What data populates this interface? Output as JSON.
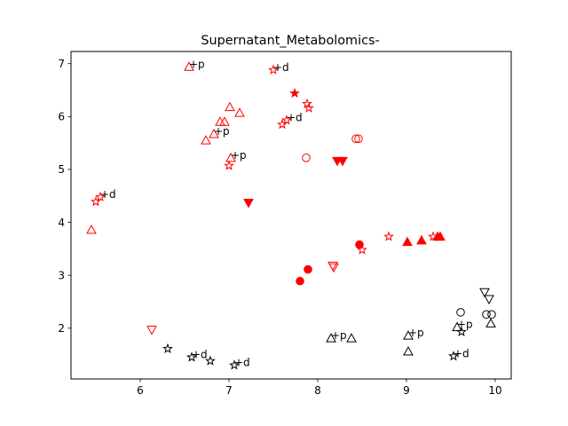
{
  "chart_data": {
    "type": "scatter",
    "title": "Supernatant_Metabolomics-",
    "xlabel": "",
    "ylabel": "",
    "xlim": [
      5.22,
      10.18
    ],
    "ylim": [
      1.04,
      7.23
    ],
    "xticks": [
      6,
      7,
      8,
      9,
      10
    ],
    "yticks": [
      2,
      3,
      4,
      5,
      6,
      7
    ],
    "grid": false,
    "colors": {
      "red": "#ff0000",
      "black": "#000000"
    },
    "points": [
      {
        "x": 6.55,
        "y": 6.94,
        "marker": "triangle-up",
        "color": "red",
        "fill": false
      },
      {
        "x": 7.01,
        "y": 6.18,
        "marker": "triangle-up",
        "color": "red",
        "fill": false
      },
      {
        "x": 7.12,
        "y": 6.07,
        "marker": "triangle-up",
        "color": "red",
        "fill": false
      },
      {
        "x": 6.9,
        "y": 5.9,
        "marker": "triangle-up",
        "color": "red",
        "fill": false
      },
      {
        "x": 6.95,
        "y": 5.9,
        "marker": "triangle-up",
        "color": "red",
        "fill": false
      },
      {
        "x": 6.83,
        "y": 5.67,
        "marker": "triangle-up",
        "color": "red",
        "fill": false
      },
      {
        "x": 6.74,
        "y": 5.55,
        "marker": "triangle-up",
        "color": "red",
        "fill": false
      },
      {
        "x": 7.02,
        "y": 5.22,
        "marker": "triangle-up",
        "color": "red",
        "fill": false
      },
      {
        "x": 5.45,
        "y": 3.86,
        "marker": "triangle-up",
        "color": "red",
        "fill": false
      },
      {
        "x": 7.5,
        "y": 6.88,
        "marker": "star",
        "color": "red",
        "fill": false
      },
      {
        "x": 7.88,
        "y": 6.24,
        "marker": "star",
        "color": "red",
        "fill": false
      },
      {
        "x": 7.9,
        "y": 6.16,
        "marker": "star",
        "color": "red",
        "fill": false
      },
      {
        "x": 7.65,
        "y": 5.93,
        "marker": "star",
        "color": "red",
        "fill": false
      },
      {
        "x": 7.6,
        "y": 5.85,
        "marker": "star",
        "color": "red",
        "fill": false
      },
      {
        "x": 7.0,
        "y": 5.07,
        "marker": "star",
        "color": "red",
        "fill": false
      },
      {
        "x": 5.55,
        "y": 4.48,
        "marker": "star",
        "color": "red",
        "fill": false
      },
      {
        "x": 5.5,
        "y": 4.39,
        "marker": "star",
        "color": "red",
        "fill": false
      },
      {
        "x": 8.8,
        "y": 3.73,
        "marker": "star",
        "color": "red",
        "fill": false
      },
      {
        "x": 8.5,
        "y": 3.48,
        "marker": "star",
        "color": "red",
        "fill": false
      },
      {
        "x": 9.3,
        "y": 3.73,
        "marker": "star",
        "color": "red",
        "fill": false
      },
      {
        "x": 7.74,
        "y": 6.44,
        "marker": "star",
        "color": "red",
        "fill": true
      },
      {
        "x": 8.43,
        "y": 5.58,
        "marker": "circle",
        "color": "red",
        "fill": false
      },
      {
        "x": 8.46,
        "y": 5.58,
        "marker": "circle",
        "color": "red",
        "fill": false
      },
      {
        "x": 7.87,
        "y": 5.22,
        "marker": "circle",
        "color": "red",
        "fill": false
      },
      {
        "x": 8.22,
        "y": 5.16,
        "marker": "triangle-down",
        "color": "red",
        "fill": true
      },
      {
        "x": 8.28,
        "y": 5.16,
        "marker": "triangle-down",
        "color": "red",
        "fill": true
      },
      {
        "x": 7.22,
        "y": 4.37,
        "marker": "triangle-down",
        "color": "red",
        "fill": true
      },
      {
        "x": 9.01,
        "y": 3.63,
        "marker": "triangle-up",
        "color": "red",
        "fill": true
      },
      {
        "x": 9.17,
        "y": 3.66,
        "marker": "triangle-up",
        "color": "red",
        "fill": true
      },
      {
        "x": 9.35,
        "y": 3.73,
        "marker": "triangle-up",
        "color": "red",
        "fill": true
      },
      {
        "x": 9.38,
        "y": 3.73,
        "marker": "triangle-up",
        "color": "red",
        "fill": true
      },
      {
        "x": 8.47,
        "y": 3.58,
        "marker": "circle",
        "color": "red",
        "fill": true
      },
      {
        "x": 7.89,
        "y": 3.11,
        "marker": "circle",
        "color": "red",
        "fill": true
      },
      {
        "x": 7.8,
        "y": 2.89,
        "marker": "circle",
        "color": "red",
        "fill": true
      },
      {
        "x": 8.17,
        "y": 3.18,
        "marker": "triangle-down",
        "color": "red",
        "fill": false
      },
      {
        "x": 8.18,
        "y": 3.15,
        "marker": "triangle-down",
        "color": "red",
        "fill": false
      },
      {
        "x": 6.13,
        "y": 1.97,
        "marker": "triangle-down",
        "color": "red",
        "fill": false
      },
      {
        "x": 9.61,
        "y": 2.3,
        "marker": "circle",
        "color": "black",
        "fill": false
      },
      {
        "x": 9.9,
        "y": 2.26,
        "marker": "circle",
        "color": "black",
        "fill": false
      },
      {
        "x": 9.96,
        "y": 2.26,
        "marker": "circle",
        "color": "black",
        "fill": false
      },
      {
        "x": 9.88,
        "y": 2.68,
        "marker": "triangle-down",
        "color": "black",
        "fill": false
      },
      {
        "x": 9.93,
        "y": 2.55,
        "marker": "triangle-down",
        "color": "black",
        "fill": false
      },
      {
        "x": 9.95,
        "y": 2.09,
        "marker": "triangle-up",
        "color": "black",
        "fill": false
      },
      {
        "x": 9.57,
        "y": 2.02,
        "marker": "triangle-up",
        "color": "black",
        "fill": false
      },
      {
        "x": 9.02,
        "y": 1.86,
        "marker": "triangle-up",
        "color": "black",
        "fill": false
      },
      {
        "x": 9.02,
        "y": 1.56,
        "marker": "triangle-up",
        "color": "black",
        "fill": false
      },
      {
        "x": 8.15,
        "y": 1.81,
        "marker": "triangle-up",
        "color": "black",
        "fill": false
      },
      {
        "x": 8.38,
        "y": 1.81,
        "marker": "triangle-up",
        "color": "black",
        "fill": false
      },
      {
        "x": 9.62,
        "y": 1.93,
        "marker": "star",
        "color": "black",
        "fill": false
      },
      {
        "x": 9.53,
        "y": 1.47,
        "marker": "star",
        "color": "black",
        "fill": false
      },
      {
        "x": 6.31,
        "y": 1.61,
        "marker": "star",
        "color": "black",
        "fill": false
      },
      {
        "x": 6.58,
        "y": 1.45,
        "marker": "star",
        "color": "black",
        "fill": false
      },
      {
        "x": 6.79,
        "y": 1.38,
        "marker": "star",
        "color": "black",
        "fill": false
      },
      {
        "x": 7.06,
        "y": 1.3,
        "marker": "star",
        "color": "black",
        "fill": false
      }
    ],
    "annotations": [
      {
        "text": "+p",
        "x": 6.55,
        "y": 6.94
      },
      {
        "text": "+d",
        "x": 7.5,
        "y": 6.88
      },
      {
        "text": "+d",
        "x": 7.65,
        "y": 5.93
      },
      {
        "text": "+p",
        "x": 6.83,
        "y": 5.67
      },
      {
        "text": "+p",
        "x": 7.02,
        "y": 5.22
      },
      {
        "text": "+d",
        "x": 5.55,
        "y": 4.48
      },
      {
        "text": "+p",
        "x": 8.15,
        "y": 1.81
      },
      {
        "text": "+p",
        "x": 9.02,
        "y": 1.86
      },
      {
        "text": "+p",
        "x": 9.57,
        "y": 2.02
      },
      {
        "text": "+d",
        "x": 9.53,
        "y": 1.47
      },
      {
        "text": "+d",
        "x": 6.58,
        "y": 1.45
      },
      {
        "text": "+d",
        "x": 7.06,
        "y": 1.3
      }
    ]
  }
}
